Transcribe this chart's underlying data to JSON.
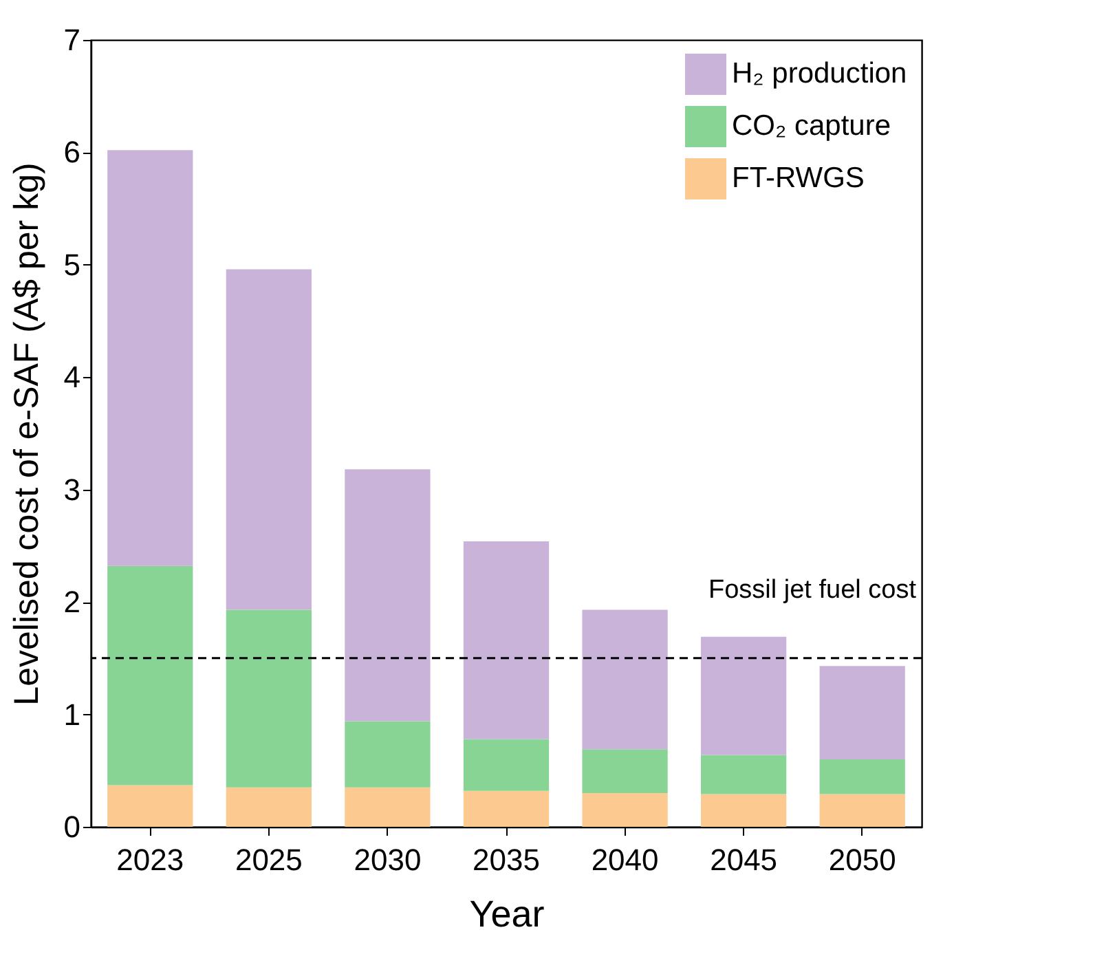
{
  "chart_data": {
    "type": "bar",
    "stacked": true,
    "xlabel": "Year",
    "ylabel": "Levelised cost of e-SAF (A$ per kg)",
    "categories": [
      "2023",
      "2025",
      "2030",
      "2035",
      "2040",
      "2045",
      "2050"
    ],
    "series": [
      {
        "name": "FT-RWGS",
        "color": "#fcc990",
        "values": [
          0.37,
          0.35,
          0.35,
          0.32,
          0.3,
          0.29,
          0.29
        ]
      },
      {
        "name": "CO₂ capture",
        "color": "#88d494",
        "values": [
          1.95,
          1.58,
          0.59,
          0.46,
          0.39,
          0.35,
          0.31
        ]
      },
      {
        "name": "H₂ production",
        "color": "#c9b3d9",
        "values": [
          3.7,
          3.03,
          2.24,
          1.76,
          1.24,
          1.05,
          0.83
        ]
      }
    ],
    "ylim": [
      0,
      7
    ],
    "yticks": [
      0,
      1,
      2,
      3,
      4,
      5,
      6,
      7
    ],
    "ref_lines": [
      {
        "axis": "y",
        "value": 1.5,
        "label": "Fossil jet fuel cost",
        "color": "#000000",
        "line_style": "dashed"
      }
    ],
    "legend": "top right"
  }
}
